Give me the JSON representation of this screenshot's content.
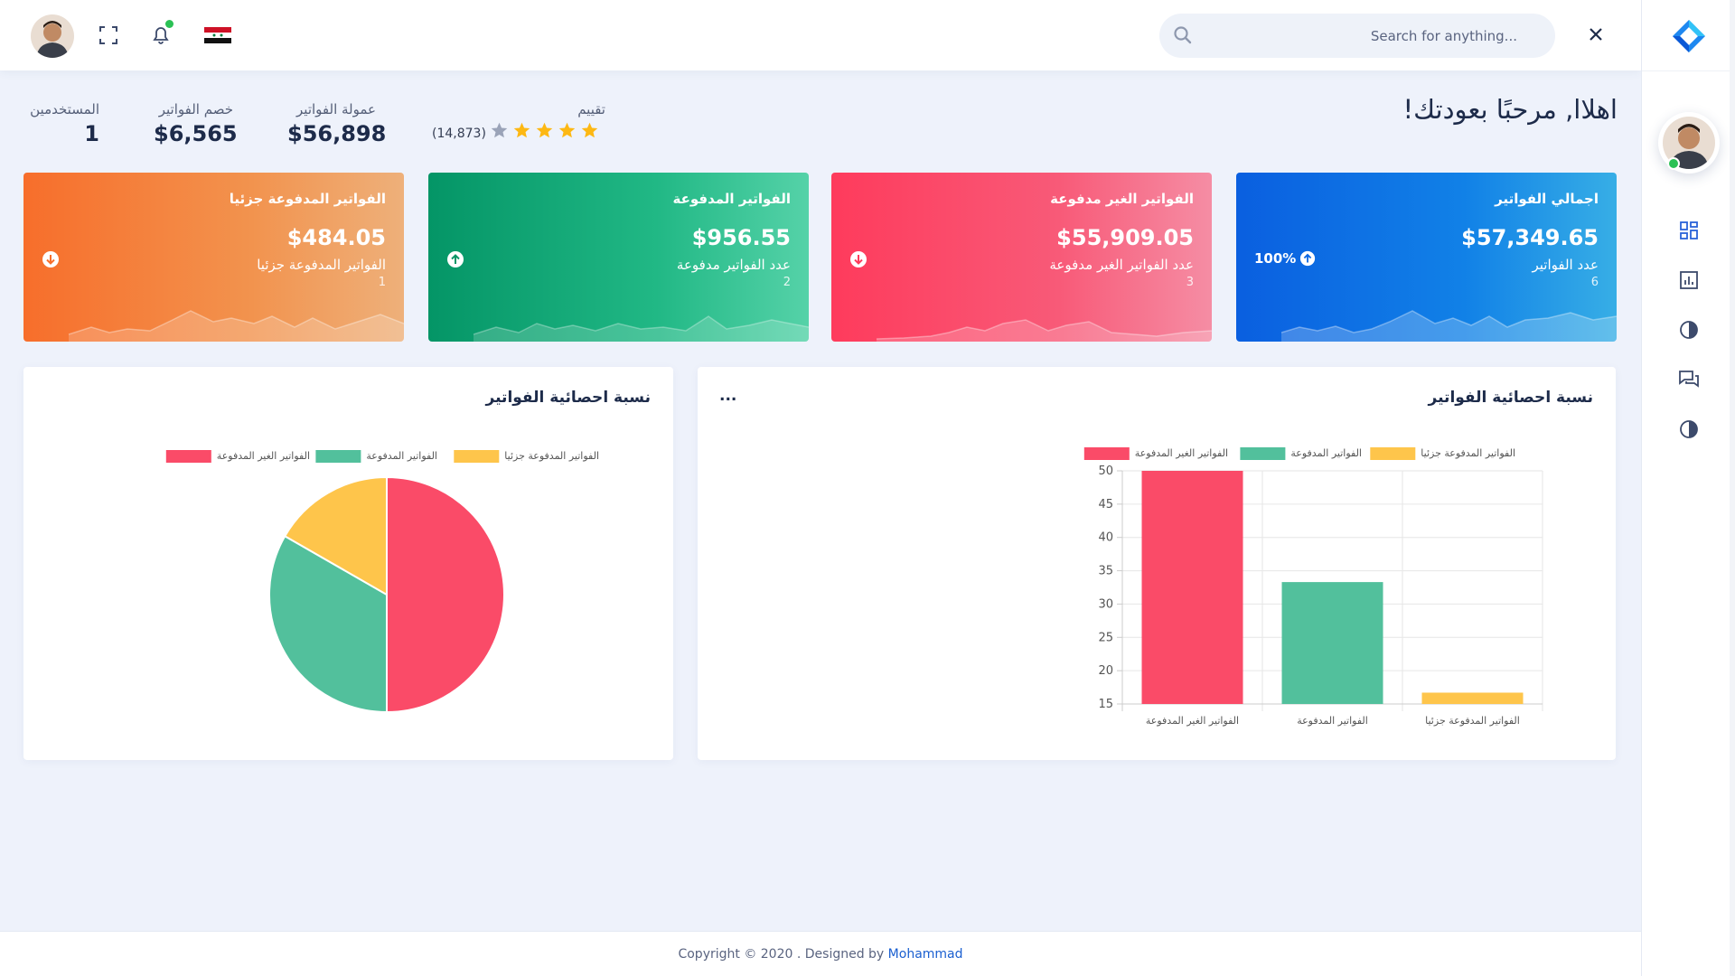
{
  "header": {
    "search_placeholder": "Search for anything...",
    "icons": [
      "avatar",
      "fullscreen-icon",
      "bell-icon",
      "flag-icon",
      "search-icon",
      "close-icon"
    ]
  },
  "welcome": "اهلاا, مرحبًا بعودتك!",
  "stats": {
    "users": {
      "label": "المستخدمين",
      "value": "1"
    },
    "discount": {
      "label": "خصم الفواتير",
      "value": "$6,565"
    },
    "commission": {
      "label": "عمولة الفواتير",
      "value": "$56,898"
    },
    "rating": {
      "label": "تقييم",
      "count": "(14,873)",
      "stars": 4
    }
  },
  "cards": [
    {
      "title": "اجمالي الفواتير",
      "amount": "$57,349.65",
      "label": "عدد الفواتير",
      "count": "6",
      "percent": "100%",
      "trend": "up",
      "color": "#0a5fe0"
    },
    {
      "title": "الفواتير الغير مدفوعة",
      "amount": "$55,909.05",
      "label": "عدد الفواتير الغير مدفوعة",
      "count": "3",
      "trend": "down",
      "color": "#fe3b5c"
    },
    {
      "title": "الفواتير المدفوعة",
      "amount": "$956.55",
      "label": "عدد الفواتير مدفوعة",
      "count": "2",
      "trend": "up",
      "color": "#049566"
    },
    {
      "title": "الفواتير المدفوعة جزئيا",
      "amount": "$484.05",
      "label": "الفواتير المدفوعة جزئيا",
      "count": "1",
      "trend": "down",
      "color": "#f76e2b"
    }
  ],
  "bar_panel": {
    "title": "نسبة احصائية الفواتير",
    "menu": "..."
  },
  "pie_panel": {
    "title": "نسبة احصائية الفواتير"
  },
  "chart_data": [
    {
      "type": "bar",
      "categories": [
        "الفواتير الغير المدفوعة",
        "الفواتير المدفوعة",
        "الفواتير المدفوعة جزئيا"
      ],
      "series": [
        {
          "name": "الفواتير الغير المدفوعة",
          "values": [
            50,
            null,
            null
          ],
          "color": "#fa4b68"
        },
        {
          "name": "الفواتير المدفوعة",
          "values": [
            null,
            33.3,
            null
          ],
          "color": "#52c09c"
        },
        {
          "name": "الفواتير المدفوعة جزئيا",
          "values": [
            null,
            null,
            16.7
          ],
          "color": "#fec54b"
        }
      ],
      "yticks": [
        15,
        20,
        25,
        30,
        35,
        40,
        45,
        50
      ],
      "ylim": [
        15,
        50
      ],
      "grid": true,
      "legend": "top"
    },
    {
      "type": "pie",
      "labels": [
        "الفواتير الغير المدفوعة",
        "الفواتير المدفوعة",
        "الفواتير المدفوعة جزئيا"
      ],
      "values": [
        50,
        33.3,
        16.7
      ],
      "colors": [
        "#fa4b68",
        "#52c09c",
        "#fec54b"
      ],
      "legend": "top"
    }
  ],
  "sidebar": {
    "icons": [
      "logo-icon",
      "dashboard-icon",
      "reports-icon",
      "invoices-icon",
      "messages-icon",
      "settings-icon"
    ]
  },
  "footer": {
    "text": "Copyright © 2020 . Designed by",
    "author": "Mohammad"
  }
}
